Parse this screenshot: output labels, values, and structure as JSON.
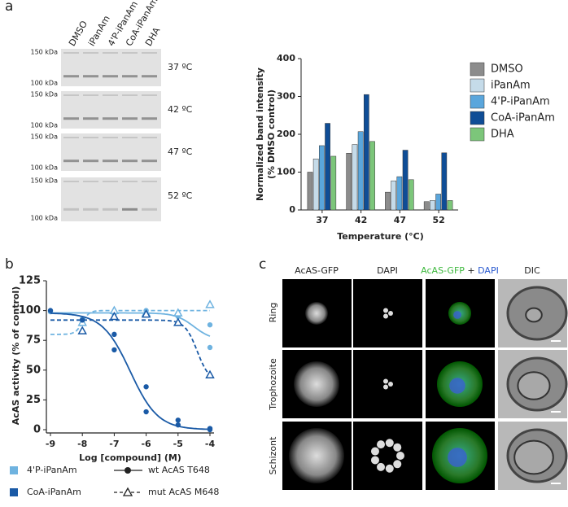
{
  "panel_labels": [
    "a",
    "b",
    "c"
  ],
  "blot": {
    "lanes": [
      "DMSO",
      "iPanAm",
      "4'P-iPanAm",
      "CoA-iPanAm",
      "DHA"
    ],
    "markers": [
      "150 kDa",
      "100 kDa"
    ],
    "temperatures": [
      "37 ºC",
      "42 ºC",
      "47 ºC",
      "52 ºC"
    ]
  },
  "microscopy": {
    "columns": [
      "AcAS-GFP",
      "DAPI"
    ],
    "merge_column": {
      "green": "AcAS-GFP",
      "plus": "+",
      "blue": "DAPI"
    },
    "dic_column": "DIC",
    "rows": [
      "Ring",
      "Trophozoite",
      "Schizont"
    ]
  },
  "chart_data": [
    {
      "type": "bar",
      "y_label": [
        "Normalized band intensity",
        "(% DMSO control)"
      ],
      "x_label": "Temperature (°C)",
      "categories": [
        "37",
        "42",
        "47",
        "52"
      ],
      "series": [
        {
          "name": "DMSO",
          "color": "#8c8c8c",
          "values": [
            100,
            150,
            47,
            22
          ]
        },
        {
          "name": "iPanAm",
          "color": "#c5dbe9",
          "values": [
            135,
            173,
            77,
            25
          ]
        },
        {
          "name": "4'P-iPanAm",
          "color": "#5aa6dc",
          "values": [
            170,
            207,
            88,
            42
          ]
        },
        {
          "name": "CoA-iPanAm",
          "color": "#0f4d96",
          "values": [
            229,
            305,
            158,
            151
          ]
        },
        {
          "name": "DHA",
          "color": "#7cc67a",
          "values": [
            142,
            181,
            80,
            25
          ]
        }
      ],
      "ylim": [
        0,
        400
      ],
      "yticks": [
        0,
        100,
        200,
        300,
        400
      ],
      "legend": "right"
    },
    {
      "type": "scatter",
      "y_label": "AcAS activity (% of control)",
      "x_label": "Log [compound] (M)",
      "xlim": [
        -9,
        -4
      ],
      "xticks": [
        -9,
        -8,
        -7,
        -6,
        -5,
        -4
      ],
      "ylim": [
        0,
        125
      ],
      "yticks": [
        0,
        25,
        50,
        75,
        100,
        125
      ],
      "compounds": [
        {
          "name": "4'P-iPanAm",
          "color": "#6fb3e0"
        },
        {
          "name": "CoA-iPanAm",
          "color": "#1a5aa6"
        }
      ],
      "constructs": [
        {
          "name": "wt AcAS T648",
          "marker": "circle",
          "line": "solid"
        },
        {
          "name": "mut AcAS M648",
          "marker": "triangle",
          "line": "dashed"
        }
      ],
      "series": [
        {
          "compound": 0,
          "construct": 0,
          "x": [
            -9,
            -8,
            -7,
            -6,
            -5,
            -4,
            -4
          ],
          "values": [
            99,
            93,
            97,
            100,
            95,
            88,
            69
          ]
        },
        {
          "compound": 0,
          "construct": 1,
          "x": [
            -8,
            -7,
            -6,
            -5,
            -4
          ],
          "values": [
            90,
            100,
            98,
            98,
            105
          ]
        },
        {
          "compound": 1,
          "construct": 0,
          "x": [
            -9,
            -8,
            -7,
            -7,
            -6,
            -6,
            -5,
            -5,
            -4,
            -4
          ],
          "values": [
            100,
            92,
            80,
            67,
            36,
            15,
            8,
            4,
            1,
            0
          ]
        },
        {
          "compound": 1,
          "construct": 1,
          "x": [
            -8,
            -7,
            -6,
            -5,
            -4
          ],
          "values": [
            83,
            95,
            97,
            90,
            46
          ]
        }
      ]
    }
  ]
}
